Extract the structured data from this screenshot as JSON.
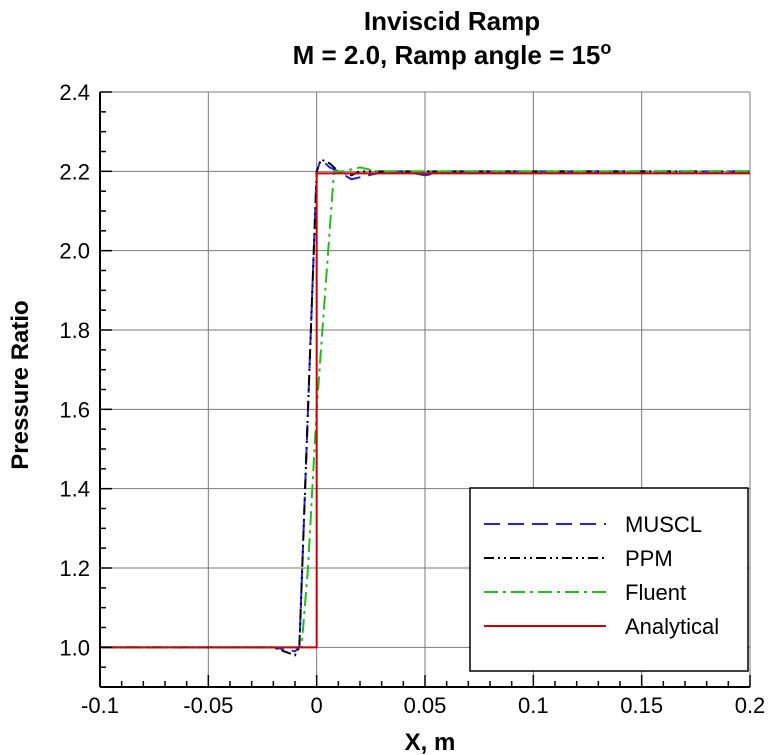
{
  "chart_data": {
    "type": "line",
    "title": "Inviscid Ramp",
    "subtitle": "M = 2.0, Ramp angle = 15",
    "subtitle_superscript": "o",
    "xlabel": "X, m",
    "ylabel": "Pressure Ratio",
    "xlim": [
      -0.1,
      0.2
    ],
    "ylim": [
      0.9,
      2.4
    ],
    "xticks": [
      -0.1,
      -0.05,
      0,
      0.05,
      0.1,
      0.15,
      0.2
    ],
    "xtick_labels": [
      "-0.1",
      "-0.05",
      "0",
      "0.05",
      "0.1",
      "0.15",
      "0.2"
    ],
    "yticks": [
      1.0,
      1.2,
      1.4,
      1.6,
      1.8,
      2.0,
      2.2,
      2.4
    ],
    "ytick_labels": [
      "1.0",
      "1.2",
      "1.4",
      "1.6",
      "1.8",
      "2.0",
      "2.2",
      "2.4"
    ],
    "grid": true,
    "legend_position": "bottom-right",
    "series": [
      {
        "name": "MUSCL",
        "color": "#2222ee",
        "dash": "dashed",
        "x": [
          -0.1,
          -0.02,
          -0.01,
          -0.008,
          0.0,
          0.002,
          0.006,
          0.01,
          0.016,
          0.024,
          0.032,
          0.04,
          0.05,
          0.06,
          0.08,
          0.1,
          0.15,
          0.2
        ],
        "y": [
          1.0,
          1.0,
          0.99,
          1.0,
          2.2,
          2.23,
          2.21,
          2.2,
          2.18,
          2.19,
          2.2,
          2.2,
          2.19,
          2.2,
          2.2,
          2.2,
          2.2,
          2.2
        ]
      },
      {
        "name": "PPM",
        "color": "#000000",
        "dash": "dash-dot-dot",
        "x": [
          -0.1,
          -0.02,
          -0.01,
          -0.008,
          0.0,
          0.002,
          0.006,
          0.01,
          0.016,
          0.02,
          0.03,
          0.05,
          0.1,
          0.15,
          0.2
        ],
        "y": [
          1.0,
          1.0,
          0.98,
          1.0,
          2.2,
          2.23,
          2.22,
          2.2,
          2.19,
          2.2,
          2.2,
          2.2,
          2.2,
          2.2,
          2.2
        ]
      },
      {
        "name": "Fluent",
        "color": "#22bb22",
        "dash": "dash-dot",
        "x": [
          -0.1,
          -0.007,
          -0.004,
          0.0,
          0.004,
          0.008,
          0.012,
          0.02,
          0.028,
          0.04,
          0.06,
          0.1,
          0.15,
          0.2
        ],
        "y": [
          1.0,
          1.0,
          1.2,
          1.6,
          1.9,
          2.2,
          2.2,
          2.21,
          2.2,
          2.2,
          2.2,
          2.2,
          2.2,
          2.2
        ]
      },
      {
        "name": "Analytical",
        "color": "#cc0000",
        "dash": "solid",
        "x": [
          -0.1,
          0.0,
          0.0,
          0.2
        ],
        "y": [
          1.0,
          1.0,
          2.195,
          2.195
        ]
      }
    ]
  }
}
